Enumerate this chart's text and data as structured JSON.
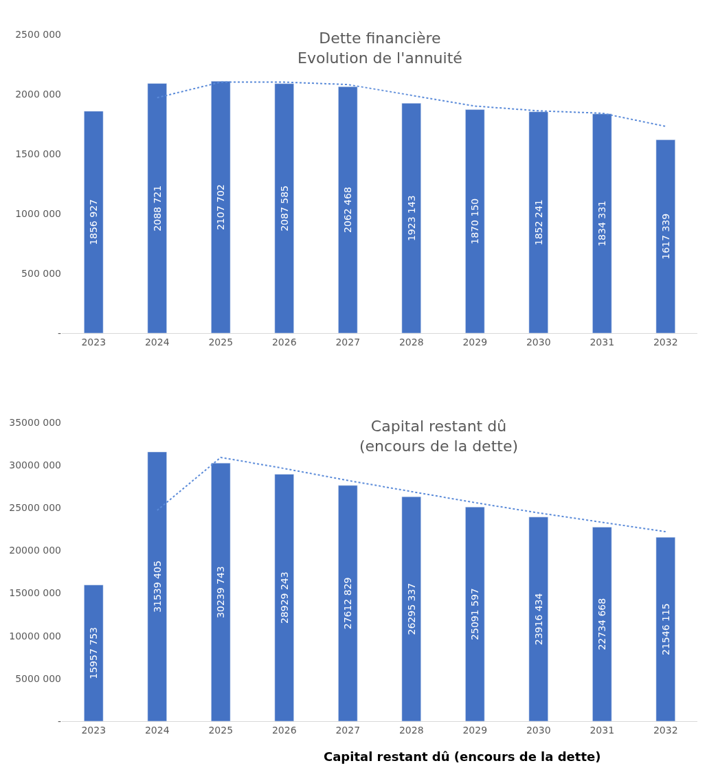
{
  "chart_data": [
    {
      "type": "bar",
      "title": "Dette financière\nEvolution de l'annuité",
      "categories": [
        "2023",
        "2024",
        "2025",
        "2026",
        "2027",
        "2028",
        "2029",
        "2030",
        "2031",
        "2032"
      ],
      "series": [
        {
          "color": "#4472c4",
          "values": [
            1856927,
            2088721,
            2107702,
            2087585,
            2062468,
            1923143,
            1870150,
            1852241,
            1834331,
            1617339
          ],
          "value_labels": [
            "1856 927",
            "2088 721",
            "2107 702",
            "2087 585",
            "2062 468",
            "1923 143",
            "1870 150",
            "1852 241",
            "1834 331",
            "1617 339"
          ]
        },
        {
          "type": "line",
          "color": "#5b8bd9",
          "line_style": "dotted",
          "marker": "none",
          "values": [
            null,
            1970000,
            2100000,
            2100000,
            2080000,
            1990000,
            1900000,
            1860000,
            1840000,
            1730000
          ]
        }
      ],
      "ylim": [
        0,
        2500000
      ],
      "yticks": [
        {
          "value": 0,
          "label": "-"
        },
        {
          "value": 500000,
          "label": "500 000"
        },
        {
          "value": 1000000,
          "label": "1000 000"
        },
        {
          "value": 1500000,
          "label": "1500 000"
        },
        {
          "value": 2000000,
          "label": "2000 000"
        },
        {
          "value": 2500000,
          "label": "2500 000"
        }
      ]
    },
    {
      "type": "bar",
      "title": "Capital restant dû\n(encours de la dette)",
      "categories": [
        "2023",
        "2024",
        "2025",
        "2026",
        "2027",
        "2028",
        "2029",
        "2030",
        "2031",
        "2032"
      ],
      "series": [
        {
          "color": "#4472c4",
          "values": [
            15957753,
            31539405,
            30239743,
            28929243,
            27612829,
            26295337,
            25091597,
            23916434,
            22734668,
            21546115
          ],
          "value_labels": [
            "15957 753",
            "31539 405",
            "30239 743",
            "28929 243",
            "27612 829",
            "26295 337",
            "25091 597",
            "23916 434",
            "22734 668",
            "21546 115"
          ]
        },
        {
          "type": "line",
          "color": "#5b8bd9",
          "line_style": "dotted",
          "marker": "none",
          "values": [
            null,
            24700000,
            30900000,
            29600000,
            28200000,
            26900000,
            25600000,
            24400000,
            23300000,
            22200000
          ]
        }
      ],
      "ylim": [
        0,
        35000000
      ],
      "yticks": [
        {
          "value": 0,
          "label": "-"
        },
        {
          "value": 5000000,
          "label": "5000 000"
        },
        {
          "value": 10000000,
          "label": "10000 000"
        },
        {
          "value": 15000000,
          "label": "15000 000"
        },
        {
          "value": 20000000,
          "label": "20000 000"
        },
        {
          "value": 25000000,
          "label": "25000 000"
        },
        {
          "value": 30000000,
          "label": "30000 000"
        },
        {
          "value": 35000000,
          "label": "35000 000"
        }
      ],
      "annotations": [
        "Capital restant dû (encours de la dette)"
      ]
    }
  ]
}
